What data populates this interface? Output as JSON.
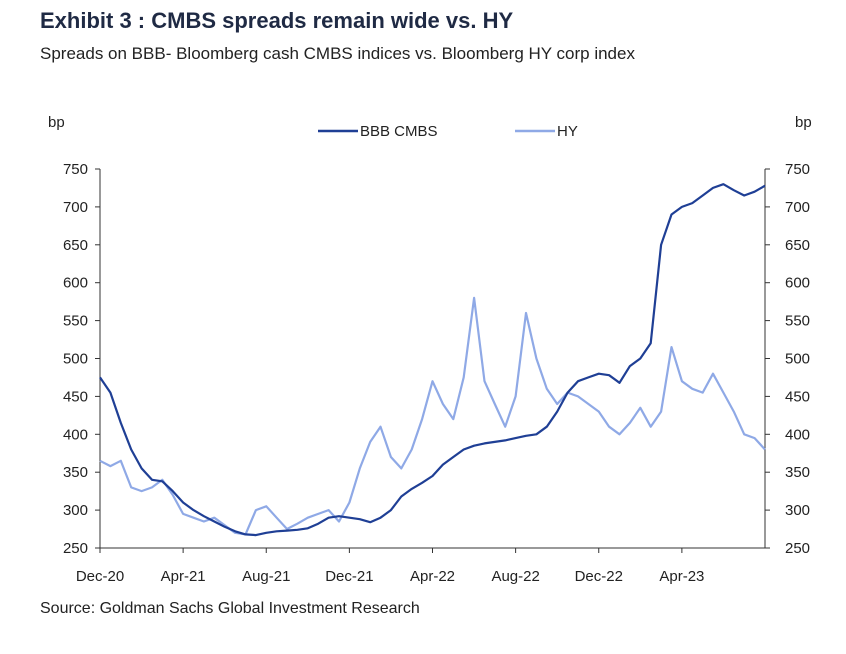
{
  "header": {
    "title": "Exhibit 3 : CMBS spreads remain wide vs. HY",
    "subtitle": "Spreads on BBB- Bloomberg cash CMBS indices vs. Bloomberg HY corp index"
  },
  "footer": {
    "source": "Source: Goldman Sachs Global Investment Research"
  },
  "colors": {
    "cmbs": "#1f3f95",
    "hy": "#8fa9e6",
    "axis": "#333333"
  },
  "chart_data": {
    "type": "line",
    "left_unit": "bp",
    "right_unit": "bp",
    "ylim": [
      250,
      750
    ],
    "yticks": [
      250,
      300,
      350,
      400,
      450,
      500,
      550,
      600,
      650,
      700,
      750
    ],
    "xlim": [
      0,
      32
    ],
    "xtick_labels": [
      {
        "x": 0,
        "label": "Dec-20"
      },
      {
        "x": 4,
        "label": "Apr-21"
      },
      {
        "x": 8,
        "label": "Aug-21"
      },
      {
        "x": 12,
        "label": "Dec-21"
      },
      {
        "x": 16,
        "label": "Apr-22"
      },
      {
        "x": 20,
        "label": "Aug-22"
      },
      {
        "x": 24,
        "label": "Dec-22"
      },
      {
        "x": 28,
        "label": "Apr-23"
      }
    ],
    "legend_position": "top-center",
    "series": [
      {
        "name": "BBB CMBS",
        "color_key": "cmbs",
        "points": [
          [
            0,
            475
          ],
          [
            0.5,
            455
          ],
          [
            1,
            415
          ],
          [
            1.5,
            380
          ],
          [
            2,
            355
          ],
          [
            2.5,
            340
          ],
          [
            3,
            338
          ],
          [
            3.5,
            325
          ],
          [
            4,
            310
          ],
          [
            4.5,
            300
          ],
          [
            5,
            292
          ],
          [
            5.5,
            285
          ],
          [
            6,
            278
          ],
          [
            6.5,
            272
          ],
          [
            7,
            268
          ],
          [
            7.5,
            267
          ],
          [
            8,
            270
          ],
          [
            8.5,
            272
          ],
          [
            9,
            273
          ],
          [
            9.5,
            274
          ],
          [
            10,
            276
          ],
          [
            10.5,
            282
          ],
          [
            11,
            290
          ],
          [
            11.5,
            292
          ],
          [
            12,
            290
          ],
          [
            12.5,
            288
          ],
          [
            13,
            284
          ],
          [
            13.5,
            290
          ],
          [
            14,
            300
          ],
          [
            14.5,
            318
          ],
          [
            15,
            328
          ],
          [
            15.5,
            336
          ],
          [
            16,
            345
          ],
          [
            16.5,
            360
          ],
          [
            17,
            370
          ],
          [
            17.5,
            380
          ],
          [
            18,
            385
          ],
          [
            18.5,
            388
          ],
          [
            19,
            390
          ],
          [
            19.5,
            392
          ],
          [
            20,
            395
          ],
          [
            20.5,
            398
          ],
          [
            21,
            400
          ],
          [
            21.5,
            410
          ],
          [
            22,
            430
          ],
          [
            22.5,
            455
          ],
          [
            23,
            470
          ],
          [
            23.5,
            475
          ],
          [
            24,
            480
          ],
          [
            24.5,
            478
          ],
          [
            25,
            468
          ],
          [
            25.5,
            490
          ],
          [
            26,
            500
          ],
          [
            26.5,
            520
          ],
          [
            27,
            650
          ],
          [
            27.5,
            690
          ],
          [
            28,
            700
          ],
          [
            28.5,
            705
          ],
          [
            29,
            715
          ],
          [
            29.5,
            725
          ],
          [
            30,
            730
          ],
          [
            30.5,
            722
          ],
          [
            31,
            715
          ],
          [
            31.5,
            720
          ],
          [
            32,
            728
          ]
        ]
      },
      {
        "name": "HY",
        "color_key": "hy",
        "points": [
          [
            0,
            365
          ],
          [
            0.5,
            358
          ],
          [
            1,
            365
          ],
          [
            1.5,
            330
          ],
          [
            2,
            325
          ],
          [
            2.5,
            330
          ],
          [
            3,
            340
          ],
          [
            3.5,
            320
          ],
          [
            4,
            295
          ],
          [
            4.5,
            290
          ],
          [
            5,
            285
          ],
          [
            5.5,
            290
          ],
          [
            6,
            280
          ],
          [
            6.5,
            270
          ],
          [
            7,
            268
          ],
          [
            7.5,
            300
          ],
          [
            8,
            305
          ],
          [
            8.5,
            290
          ],
          [
            9,
            275
          ],
          [
            9.5,
            282
          ],
          [
            10,
            290
          ],
          [
            10.5,
            295
          ],
          [
            11,
            300
          ],
          [
            11.5,
            285
          ],
          [
            12,
            310
          ],
          [
            12.5,
            355
          ],
          [
            13,
            390
          ],
          [
            13.5,
            410
          ],
          [
            14,
            370
          ],
          [
            14.5,
            355
          ],
          [
            15,
            380
          ],
          [
            15.5,
            420
          ],
          [
            16,
            470
          ],
          [
            16.5,
            440
          ],
          [
            17,
            420
          ],
          [
            17.5,
            475
          ],
          [
            18,
            580
          ],
          [
            18.5,
            470
          ],
          [
            19,
            440
          ],
          [
            19.5,
            410
          ],
          [
            20,
            450
          ],
          [
            20.5,
            560
          ],
          [
            21,
            500
          ],
          [
            21.5,
            460
          ],
          [
            22,
            440
          ],
          [
            22.5,
            455
          ],
          [
            23,
            450
          ],
          [
            23.5,
            440
          ],
          [
            24,
            430
          ],
          [
            24.5,
            410
          ],
          [
            25,
            400
          ],
          [
            25.5,
            415
          ],
          [
            26,
            435
          ],
          [
            26.5,
            410
          ],
          [
            27,
            430
          ],
          [
            27.5,
            515
          ],
          [
            28,
            470
          ],
          [
            28.5,
            460
          ],
          [
            29,
            455
          ],
          [
            29.5,
            480
          ],
          [
            30,
            455
          ],
          [
            30.5,
            430
          ],
          [
            31,
            400
          ],
          [
            31.5,
            395
          ],
          [
            32,
            380
          ]
        ]
      }
    ]
  }
}
